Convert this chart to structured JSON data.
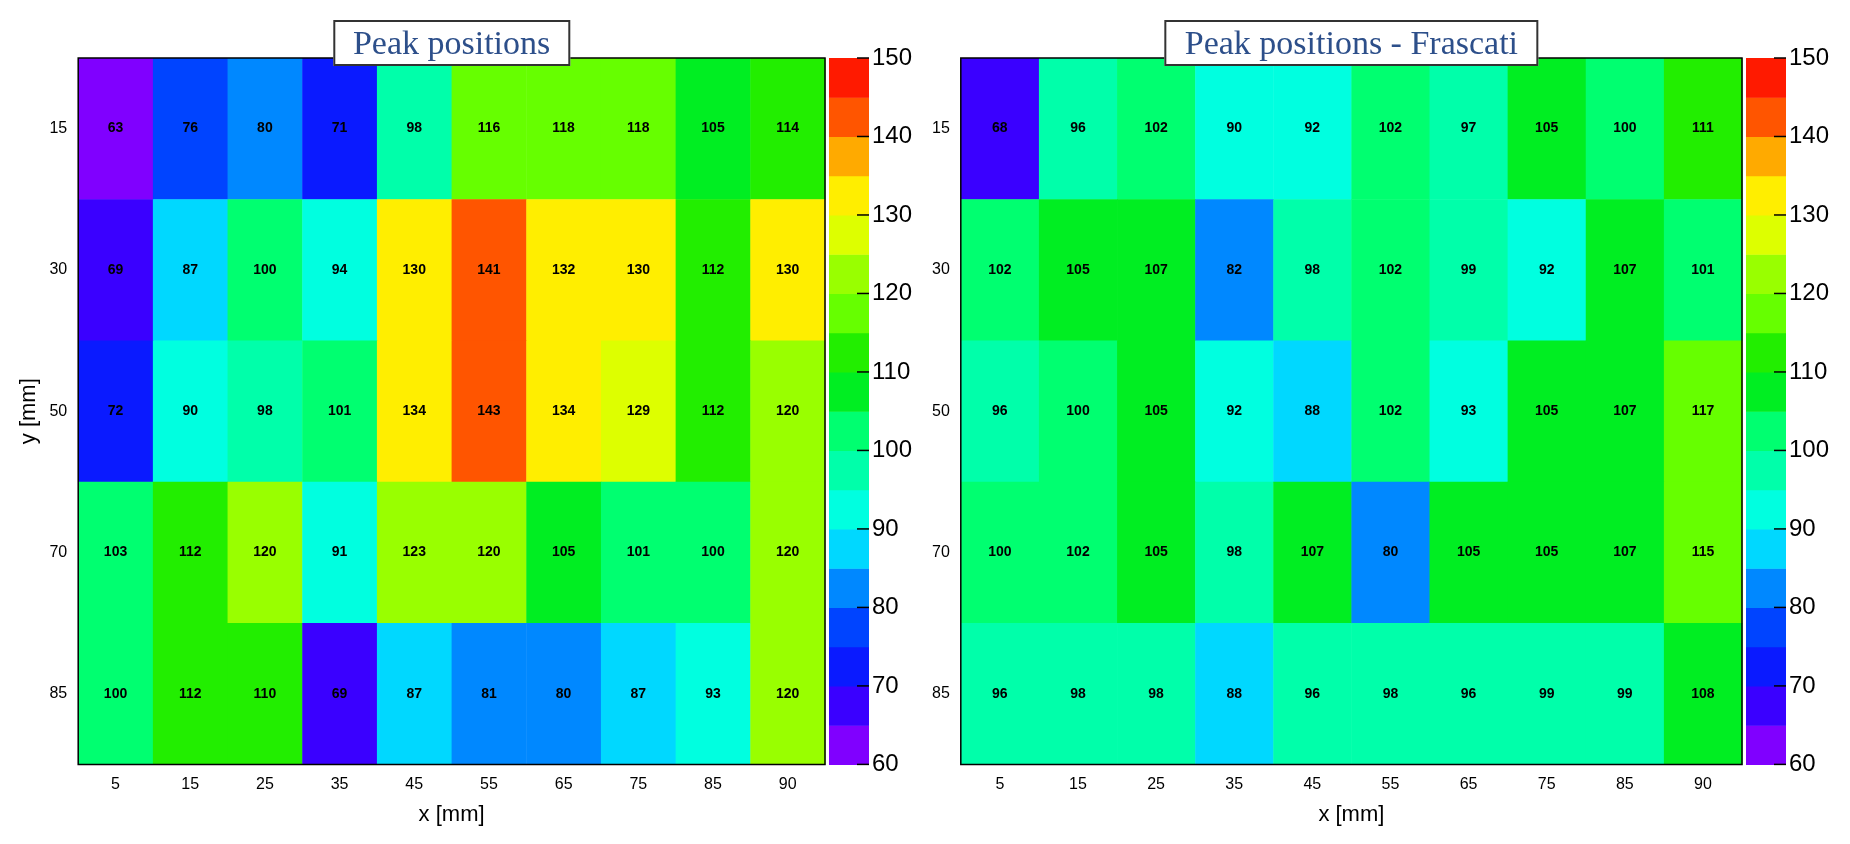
{
  "chart_data": [
    {
      "type": "heatmap",
      "title": "Peak positions",
      "xlabel": "x [mm]",
      "ylabel": "y [mm]",
      "categories": [
        "5",
        "15",
        "25",
        "35",
        "45",
        "55",
        "65",
        "75",
        "85",
        "90"
      ],
      "y_categories": [
        "15",
        "30",
        "50",
        "70",
        "85"
      ],
      "cells": [
        [
          63,
          76,
          80,
          71,
          98,
          116,
          118,
          118,
          105,
          114
        ],
        [
          69,
          87,
          100,
          94,
          130,
          141,
          132,
          130,
          112,
          130
        ],
        [
          72,
          90,
          98,
          101,
          134,
          143,
          134,
          129,
          112,
          120
        ],
        [
          103,
          112,
          120,
          91,
          123,
          120,
          105,
          101,
          100,
          120
        ],
        [
          100,
          112,
          110,
          69,
          87,
          81,
          80,
          87,
          93,
          120
        ]
      ],
      "data_labels": true,
      "clim": [
        60,
        150
      ],
      "cticks": [
        60,
        70,
        80,
        90,
        100,
        110,
        120,
        130,
        140,
        150
      ]
    },
    {
      "type": "heatmap",
      "title": "Peak positions - Frascati",
      "xlabel": "x [mm]",
      "categories": [
        "5",
        "15",
        "25",
        "35",
        "45",
        "55",
        "65",
        "75",
        "85",
        "90"
      ],
      "y_categories": [
        "15",
        "30",
        "50",
        "70",
        "85"
      ],
      "cells": [
        [
          68,
          96,
          102,
          90,
          92,
          102,
          97,
          105,
          100,
          111
        ],
        [
          102,
          105,
          107,
          82,
          98,
          102,
          99,
          92,
          107,
          101
        ],
        [
          96,
          100,
          105,
          92,
          88,
          102,
          93,
          105,
          107,
          117
        ],
        [
          100,
          102,
          105,
          98,
          107,
          80,
          105,
          105,
          107,
          115
        ],
        [
          96,
          98,
          98,
          88,
          96,
          98,
          96,
          99,
          99,
          108
        ]
      ],
      "data_labels": true,
      "clim": [
        60,
        150
      ],
      "cticks": [
        60,
        70,
        80,
        90,
        100,
        110,
        120,
        130,
        140,
        150
      ]
    }
  ]
}
